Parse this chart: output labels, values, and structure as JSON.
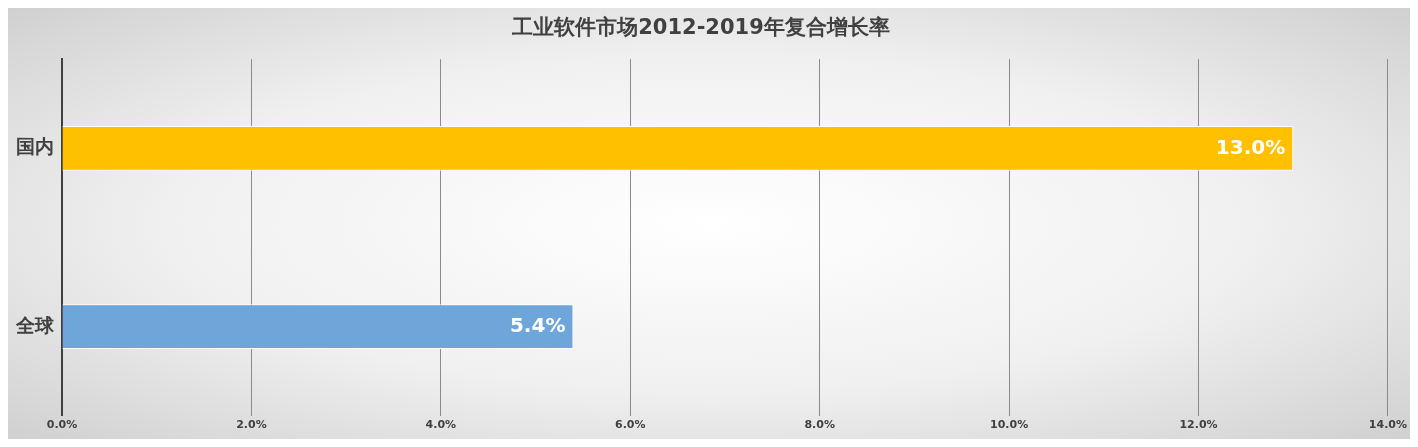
{
  "chart_data": {
    "type": "bar",
    "orientation": "horizontal",
    "title": "工业软件市场2012-2019年复合增长率",
    "categories": [
      "国内",
      "全球"
    ],
    "values": [
      13.0,
      5.4
    ],
    "colors": [
      "#ffc000",
      "#6fa6d9"
    ],
    "value_labels": [
      "13.0%",
      "5.4%"
    ],
    "xlim": [
      0,
      14
    ],
    "xticks": [
      {
        "value": 0,
        "label": "0.0%"
      },
      {
        "value": 2,
        "label": "2.0%"
      },
      {
        "value": 4,
        "label": "4.0%"
      },
      {
        "value": 6,
        "label": "6.0%"
      },
      {
        "value": 8,
        "label": "8.0%"
      },
      {
        "value": 10,
        "label": "10.0%"
      },
      {
        "value": 12,
        "label": "12.0%"
      },
      {
        "value": 14,
        "label": "14.0%"
      }
    ],
    "grid": "x",
    "legend": false
  }
}
